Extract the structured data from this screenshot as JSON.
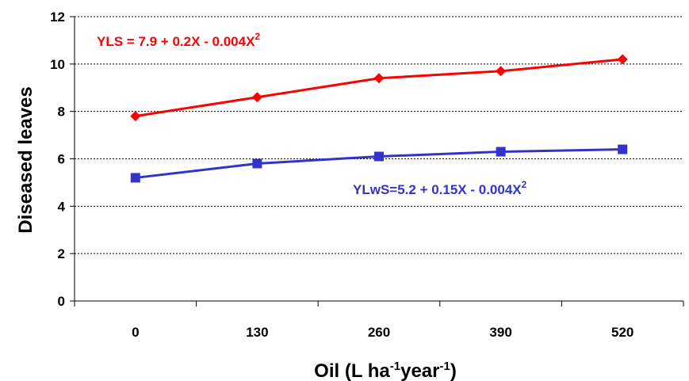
{
  "chart_data": {
    "type": "line",
    "categories": [
      "0",
      "130",
      "260",
      "390",
      "520"
    ],
    "series": [
      {
        "key": "yls",
        "color": "#ff0000",
        "marker": "diamond",
        "values": [
          7.8,
          8.6,
          9.4,
          9.7,
          10.2
        ]
      },
      {
        "key": "ylws",
        "color": "#3333cc",
        "marker": "square",
        "values": [
          5.2,
          5.8,
          6.1,
          6.3,
          6.4
        ]
      }
    ],
    "equations": {
      "yls": {
        "text": "YLS = 7.9 + 0.2X - 0.004X",
        "sup": "2"
      },
      "ylws": {
        "text": "YLwS=5.2 + 0.15X - 0.004X",
        "sup": "2"
      }
    },
    "ylabel": "Diseased leaves",
    "xlabel": {
      "part1": "Oil (L ha",
      "sup1": "-1",
      "part2": "year",
      "sup2": "-1",
      "part3": ")"
    },
    "ylim": [
      0,
      12
    ],
    "yticks": [
      "0",
      "2",
      "4",
      "6",
      "8",
      "10",
      "12"
    ],
    "grid": "horizontal-dotted"
  }
}
